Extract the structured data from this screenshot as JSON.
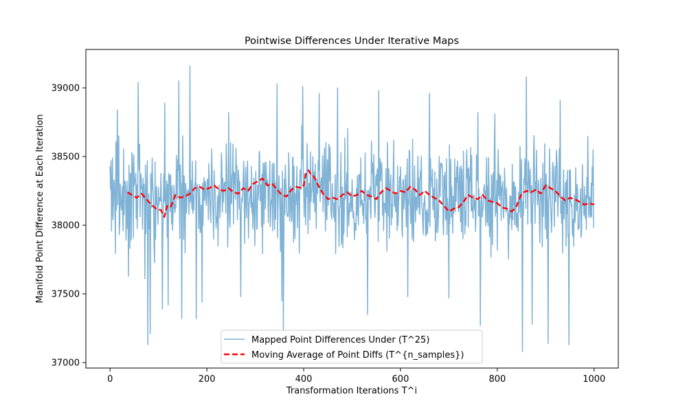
{
  "chart_data": {
    "type": "line",
    "title": "Pointwise Differences Under Iterative Maps",
    "xlabel": "Transformation Iterations T^i",
    "ylabel": "Manifold Point Difference at Each Iteration",
    "xlim": [
      -50,
      1050
    ],
    "ylim": [
      36960,
      39280
    ],
    "x_ticks": [
      0,
      200,
      400,
      600,
      800,
      1000
    ],
    "y_ticks": [
      37000,
      37500,
      38000,
      38500,
      39000
    ],
    "grid": false,
    "legend_position": "lower-center",
    "n_points": 1000,
    "series": [
      {
        "name": "Mapped Point Differences Under (T^25)",
        "color": "#7fb2d5",
        "style": "solid",
        "generator": "noisy",
        "center": 38220,
        "spread": 330,
        "spikes": [
          {
            "x": 2,
            "y": 38470
          },
          {
            "x": 5,
            "y": 38490
          },
          {
            "x": 15,
            "y": 38840
          },
          {
            "x": 38,
            "y": 37630
          },
          {
            "x": 58,
            "y": 39040
          },
          {
            "x": 72,
            "y": 37610
          },
          {
            "x": 78,
            "y": 37130
          },
          {
            "x": 83,
            "y": 37210
          },
          {
            "x": 108,
            "y": 37390
          },
          {
            "x": 113,
            "y": 38890
          },
          {
            "x": 120,
            "y": 37420
          },
          {
            "x": 142,
            "y": 39050
          },
          {
            "x": 148,
            "y": 37320
          },
          {
            "x": 165,
            "y": 39160
          },
          {
            "x": 178,
            "y": 37320
          },
          {
            "x": 190,
            "y": 37440
          },
          {
            "x": 245,
            "y": 38820
          },
          {
            "x": 270,
            "y": 37480
          },
          {
            "x": 345,
            "y": 39030
          },
          {
            "x": 355,
            "y": 37450
          },
          {
            "x": 358,
            "y": 37230
          },
          {
            "x": 398,
            "y": 39010
          },
          {
            "x": 432,
            "y": 37440
          },
          {
            "x": 432,
            "y": 38960
          },
          {
            "x": 470,
            "y": 39000
          },
          {
            "x": 532,
            "y": 37350
          },
          {
            "x": 555,
            "y": 38980
          },
          {
            "x": 615,
            "y": 37480
          },
          {
            "x": 660,
            "y": 38960
          },
          {
            "x": 700,
            "y": 37470
          },
          {
            "x": 760,
            "y": 38820
          },
          {
            "x": 765,
            "y": 37270
          },
          {
            "x": 795,
            "y": 38810
          },
          {
            "x": 852,
            "y": 37080
          },
          {
            "x": 860,
            "y": 39080
          },
          {
            "x": 872,
            "y": 37280
          },
          {
            "x": 905,
            "y": 37140
          },
          {
            "x": 930,
            "y": 38910
          },
          {
            "x": 948,
            "y": 37130
          },
          {
            "x": 998,
            "y": 38550
          }
        ]
      },
      {
        "name": "Moving Average of Point Diffs (T^{n_samples})",
        "color": "#ff0000",
        "style": "dashed",
        "x": [
          36,
          45,
          55,
          65,
          75,
          85,
          95,
          105,
          112,
          118,
          125,
          135,
          145,
          155,
          165,
          175,
          185,
          195,
          205,
          215,
          225,
          235,
          245,
          255,
          265,
          275,
          285,
          295,
          305,
          315,
          325,
          335,
          345,
          355,
          365,
          375,
          385,
          395,
          400,
          405,
          410,
          415,
          420,
          425,
          430,
          440,
          450,
          460,
          470,
          480,
          490,
          500,
          510,
          520,
          530,
          540,
          550,
          560,
          570,
          580,
          590,
          600,
          610,
          620,
          630,
          640,
          650,
          660,
          670,
          680,
          690,
          700,
          710,
          720,
          730,
          740,
          750,
          760,
          770,
          780,
          790,
          800,
          810,
          820,
          830,
          840,
          850,
          860,
          870,
          880,
          890,
          900,
          910,
          920,
          930,
          940,
          950,
          960,
          970,
          980,
          990,
          1000
        ],
        "values": [
          38240,
          38220,
          38200,
          38230,
          38190,
          38150,
          38120,
          38110,
          38060,
          38140,
          38130,
          38220,
          38200,
          38210,
          38230,
          38270,
          38280,
          38260,
          38270,
          38290,
          38260,
          38250,
          38270,
          38240,
          38230,
          38270,
          38250,
          38300,
          38320,
          38340,
          38290,
          38300,
          38260,
          38220,
          38210,
          38260,
          38280,
          38270,
          38290,
          38380,
          38400,
          38370,
          38360,
          38330,
          38290,
          38230,
          38190,
          38200,
          38190,
          38220,
          38240,
          38210,
          38220,
          38250,
          38220,
          38210,
          38190,
          38240,
          38270,
          38250,
          38230,
          38250,
          38240,
          38280,
          38260,
          38220,
          38250,
          38220,
          38200,
          38180,
          38140,
          38100,
          38120,
          38130,
          38170,
          38220,
          38200,
          38190,
          38220,
          38180,
          38170,
          38160,
          38130,
          38120,
          38100,
          38140,
          38230,
          38250,
          38240,
          38260,
          38230,
          38290,
          38270,
          38250,
          38210,
          38180,
          38200,
          38190,
          38170,
          38150,
          38160,
          38150
        ]
      }
    ]
  }
}
